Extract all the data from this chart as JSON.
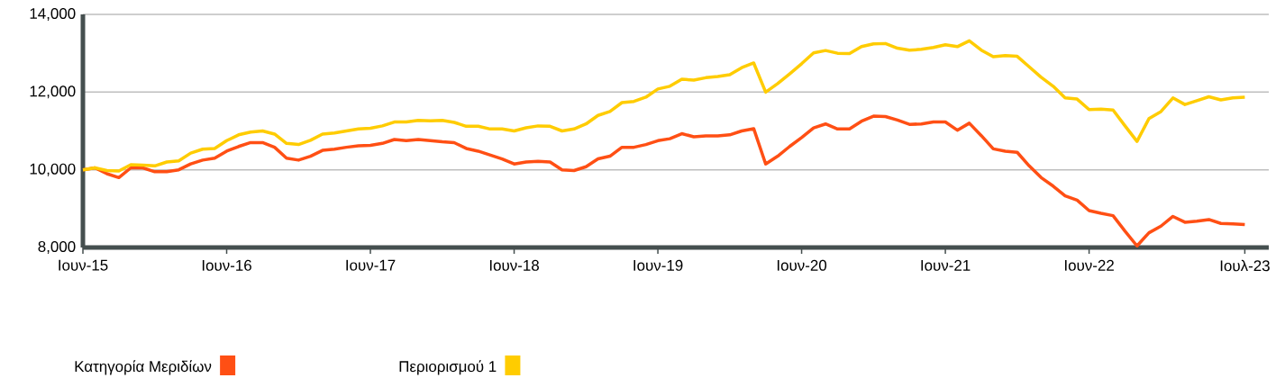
{
  "chart_data": {
    "type": "line",
    "x": [
      "2015-06",
      "2015-07",
      "2015-08",
      "2015-09",
      "2015-10",
      "2015-11",
      "2015-12",
      "2016-01",
      "2016-02",
      "2016-03",
      "2016-04",
      "2016-05",
      "2016-06",
      "2016-07",
      "2016-08",
      "2016-09",
      "2016-10",
      "2016-11",
      "2016-12",
      "2017-01",
      "2017-02",
      "2017-03",
      "2017-04",
      "2017-05",
      "2017-06",
      "2017-07",
      "2017-08",
      "2017-09",
      "2017-10",
      "2017-11",
      "2017-12",
      "2018-01",
      "2018-02",
      "2018-03",
      "2018-04",
      "2018-05",
      "2018-06",
      "2018-07",
      "2018-08",
      "2018-09",
      "2018-10",
      "2018-11",
      "2018-12",
      "2019-01",
      "2019-02",
      "2019-03",
      "2019-04",
      "2019-05",
      "2019-06",
      "2019-07",
      "2019-08",
      "2019-09",
      "2019-10",
      "2019-11",
      "2019-12",
      "2020-01",
      "2020-02",
      "2020-03",
      "2020-04",
      "2020-05",
      "2020-06",
      "2020-07",
      "2020-08",
      "2020-09",
      "2020-10",
      "2020-11",
      "2020-12",
      "2021-01",
      "2021-02",
      "2021-03",
      "2021-04",
      "2021-05",
      "2021-06",
      "2021-07",
      "2021-08",
      "2021-09",
      "2021-10",
      "2021-11",
      "2021-12",
      "2022-01",
      "2022-02",
      "2022-03",
      "2022-04",
      "2022-05",
      "2022-06",
      "2022-07",
      "2022-08",
      "2022-09",
      "2022-10",
      "2022-11",
      "2022-12",
      "2023-01",
      "2023-02",
      "2023-03",
      "2023-04",
      "2023-05",
      "2023-06",
      "2023-07"
    ],
    "series": [
      {
        "name": "Κατηγορία Μεριδίων",
        "color": "#ff4f14",
        "values": [
          10000,
          10050,
          9900,
          9800,
          10050,
          10050,
          9950,
          9950,
          10000,
          10150,
          10250,
          10300,
          10480,
          10600,
          10700,
          10700,
          10580,
          10300,
          10250,
          10350,
          10500,
          10530,
          10580,
          10620,
          10630,
          10680,
          10780,
          10750,
          10780,
          10750,
          10720,
          10700,
          10550,
          10480,
          10380,
          10280,
          10150,
          10200,
          10220,
          10200,
          10000,
          9980,
          10080,
          10280,
          10350,
          10580,
          10580,
          10650,
          10750,
          10800,
          10930,
          10850,
          10870,
          10870,
          10900,
          11000,
          11060,
          10150,
          10350,
          10600,
          10830,
          11080,
          11180,
          11050,
          11050,
          11250,
          11380,
          11370,
          11280,
          11170,
          11180,
          11230,
          11230,
          11020,
          11200,
          10880,
          10540,
          10480,
          10450,
          10100,
          9800,
          9580,
          9330,
          9220,
          8950,
          8880,
          8820,
          8420,
          8040,
          8380,
          8550,
          8800,
          8650,
          8680,
          8720,
          8620,
          8610,
          8590
        ]
      },
      {
        "name": "Περιορισμού 1",
        "color": "#ffcc00",
        "values": [
          10000,
          10050,
          9980,
          9970,
          10130,
          10120,
          10100,
          10200,
          10230,
          10430,
          10530,
          10550,
          10750,
          10900,
          10970,
          11000,
          10920,
          10680,
          10650,
          10760,
          10920,
          10950,
          11000,
          11050,
          11070,
          11130,
          11230,
          11230,
          11270,
          11260,
          11270,
          11220,
          11120,
          11120,
          11050,
          11050,
          11000,
          11080,
          11130,
          11120,
          11000,
          11050,
          11180,
          11400,
          11500,
          11730,
          11760,
          11870,
          12080,
          12150,
          12330,
          12310,
          12370,
          12400,
          12450,
          12630,
          12750,
          12000,
          12220,
          12470,
          12730,
          13010,
          13070,
          13000,
          12990,
          13170,
          13240,
          13250,
          13130,
          13080,
          13100,
          13150,
          13220,
          13170,
          13320,
          13080,
          12910,
          12940,
          12920,
          12650,
          12380,
          12150,
          11850,
          11820,
          11550,
          11560,
          11540,
          11130,
          10730,
          11320,
          11500,
          11850,
          11680,
          11780,
          11880,
          11800,
          11850,
          11870
        ]
      }
    ],
    "xlim": [
      "2015-06",
      "2023-09"
    ],
    "xticks": [
      {
        "value": "2015-06",
        "label": "Ιουν-15"
      },
      {
        "value": "2016-06",
        "label": "Ιουν-16"
      },
      {
        "value": "2017-06",
        "label": "Ιουν-17"
      },
      {
        "value": "2018-06",
        "label": "Ιουν-18"
      },
      {
        "value": "2019-06",
        "label": "Ιουν-19"
      },
      {
        "value": "2020-06",
        "label": "Ιουν-20"
      },
      {
        "value": "2021-06",
        "label": "Ιουν-21"
      },
      {
        "value": "2022-06",
        "label": "Ιουν-22"
      },
      {
        "value": "2023-07",
        "label": "Ιουλ-23"
      }
    ],
    "ylim": [
      8000,
      14000
    ],
    "yticks": [
      {
        "value": 8000,
        "label": "8,000"
      },
      {
        "value": 10000,
        "label": "10,000"
      },
      {
        "value": 12000,
        "label": "12,000"
      },
      {
        "value": 14000,
        "label": "14,000"
      }
    ],
    "grid": "y",
    "legend": "bottom",
    "marker": "none",
    "line_style": "solid"
  }
}
